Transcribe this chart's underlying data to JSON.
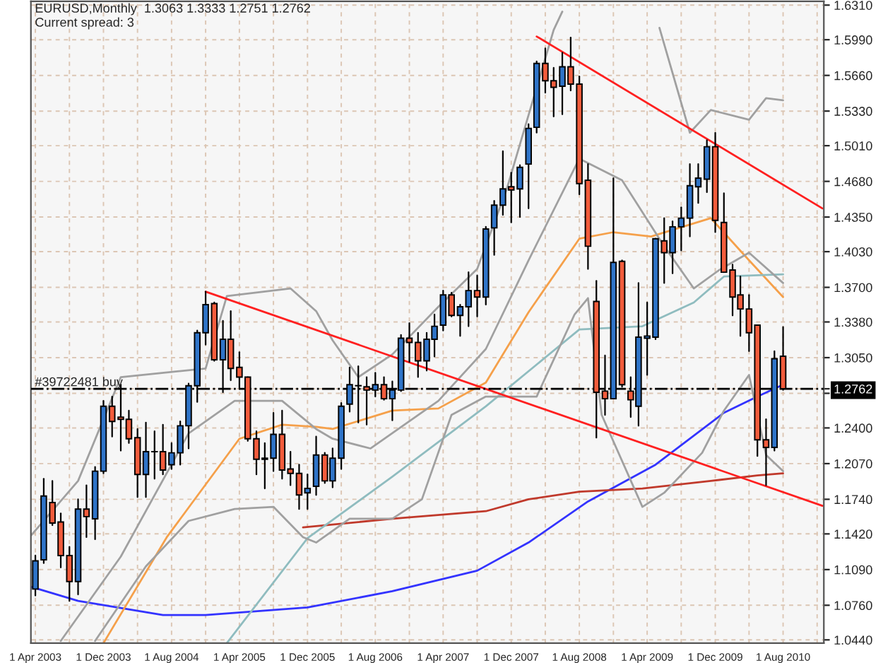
{
  "chart_data": {
    "type": "candlestick",
    "title": "EURUSD,Monthly  1.3063 1.3333 1.2751 1.2762",
    "subtitle": "Current spread: 3",
    "x": [
      "2003-04",
      "2003-05",
      "2003-06",
      "2003-07",
      "2003-08",
      "2003-09",
      "2003-10",
      "2003-11",
      "2003-12",
      "2004-01",
      "2004-02",
      "2004-03",
      "2004-04",
      "2004-05",
      "2004-06",
      "2004-07",
      "2004-08",
      "2004-09",
      "2004-10",
      "2004-11",
      "2004-12",
      "2005-01",
      "2005-02",
      "2005-03",
      "2005-04",
      "2005-05",
      "2005-06",
      "2005-07",
      "2005-08",
      "2005-09",
      "2005-10",
      "2005-11",
      "2005-12",
      "2006-01",
      "2006-02",
      "2006-03",
      "2006-04",
      "2006-05",
      "2006-06",
      "2006-07",
      "2006-08",
      "2006-09",
      "2006-10",
      "2006-11",
      "2006-12",
      "2007-01",
      "2007-02",
      "2007-03",
      "2007-04",
      "2007-05",
      "2007-06",
      "2007-07",
      "2007-08",
      "2007-09",
      "2007-10",
      "2007-11",
      "2007-12",
      "2008-01",
      "2008-02",
      "2008-03",
      "2008-04",
      "2008-05",
      "2008-06",
      "2008-07",
      "2008-08",
      "2008-09",
      "2008-10",
      "2008-11",
      "2008-12",
      "2009-01",
      "2009-02",
      "2009-03",
      "2009-04",
      "2009-05",
      "2009-06",
      "2009-07",
      "2009-08",
      "2009-09",
      "2009-10",
      "2009-11",
      "2009-12",
      "2010-01",
      "2010-02",
      "2010-03",
      "2010-04",
      "2010-05",
      "2010-06",
      "2010-07",
      "2010-08"
    ],
    "ohlc": [
      [
        1.091,
        1.122,
        1.085,
        1.117
      ],
      [
        1.118,
        1.193,
        1.115,
        1.177
      ],
      [
        1.171,
        1.191,
        1.15,
        1.152
      ],
      [
        1.153,
        1.161,
        1.111,
        1.122
      ],
      [
        1.122,
        1.13,
        1.08,
        1.098
      ],
      [
        1.098,
        1.174,
        1.086,
        1.165
      ],
      [
        1.165,
        1.187,
        1.139,
        1.158
      ],
      [
        1.156,
        1.204,
        1.137,
        1.2
      ],
      [
        1.2,
        1.265,
        1.198,
        1.26
      ],
      [
        1.26,
        1.269,
        1.232,
        1.246
      ],
      [
        1.25,
        1.28,
        1.219,
        1.248
      ],
      [
        1.248,
        1.256,
        1.226,
        1.23
      ],
      [
        1.231,
        1.239,
        1.176,
        1.197
      ],
      [
        1.197,
        1.245,
        1.176,
        1.218
      ],
      [
        1.218,
        1.237,
        1.193,
        1.218
      ],
      [
        1.218,
        1.243,
        1.197,
        1.201
      ],
      [
        1.206,
        1.226,
        1.202,
        1.217
      ],
      [
        1.217,
        1.246,
        1.206,
        1.242
      ],
      [
        1.242,
        1.281,
        1.221,
        1.279
      ],
      [
        1.279,
        1.33,
        1.264,
        1.328
      ],
      [
        1.328,
        1.366,
        1.317,
        1.354
      ],
      [
        1.355,
        1.356,
        1.302,
        1.303
      ],
      [
        1.303,
        1.339,
        1.273,
        1.322
      ],
      [
        1.322,
        1.348,
        1.284,
        1.295
      ],
      [
        1.296,
        1.31,
        1.276,
        1.287
      ],
      [
        1.287,
        1.287,
        1.228,
        1.23
      ],
      [
        1.23,
        1.237,
        1.197,
        1.211
      ],
      [
        1.211,
        1.226,
        1.184,
        1.212
      ],
      [
        1.212,
        1.254,
        1.2,
        1.234
      ],
      [
        1.234,
        1.256,
        1.193,
        1.201
      ],
      [
        1.202,
        1.218,
        1.187,
        1.198
      ],
      [
        1.198,
        1.206,
        1.165,
        1.178
      ],
      [
        1.18,
        1.197,
        1.165,
        1.184
      ],
      [
        1.186,
        1.232,
        1.178,
        1.215
      ],
      [
        1.215,
        1.217,
        1.189,
        1.191
      ],
      [
        1.191,
        1.221,
        1.185,
        1.212
      ],
      [
        1.212,
        1.263,
        1.202,
        1.26
      ],
      [
        1.262,
        1.296,
        1.255,
        1.28
      ],
      [
        1.279,
        1.297,
        1.245,
        1.279
      ],
      [
        1.278,
        1.287,
        1.243,
        1.275
      ],
      [
        1.275,
        1.291,
        1.269,
        1.28
      ],
      [
        1.28,
        1.287,
        1.266,
        1.267
      ],
      [
        1.267,
        1.283,
        1.247,
        1.275
      ],
      [
        1.275,
        1.326,
        1.274,
        1.323
      ],
      [
        1.323,
        1.337,
        1.301,
        1.319
      ],
      [
        1.319,
        1.328,
        1.287,
        1.302
      ],
      [
        1.302,
        1.328,
        1.293,
        1.322
      ],
      [
        1.322,
        1.345,
        1.306,
        1.334
      ],
      [
        1.335,
        1.367,
        1.33,
        1.363
      ],
      [
        1.363,
        1.365,
        1.343,
        1.344
      ],
      [
        1.344,
        1.354,
        1.325,
        1.352
      ],
      [
        1.352,
        1.384,
        1.334,
        1.367
      ],
      [
        1.367,
        1.381,
        1.343,
        1.361
      ],
      [
        1.361,
        1.426,
        1.354,
        1.424
      ],
      [
        1.425,
        1.45,
        1.4,
        1.446
      ],
      [
        1.446,
        1.496,
        1.437,
        1.461
      ],
      [
        1.463,
        1.476,
        1.43,
        1.46
      ],
      [
        1.461,
        1.483,
        1.435,
        1.481
      ],
      [
        1.484,
        1.521,
        1.443,
        1.517
      ],
      [
        1.518,
        1.579,
        1.513,
        1.577
      ],
      [
        1.577,
        1.591,
        1.55,
        1.561
      ],
      [
        1.561,
        1.573,
        1.528,
        1.555
      ],
      [
        1.556,
        1.587,
        1.53,
        1.574
      ],
      [
        1.574,
        1.601,
        1.552,
        1.558
      ],
      [
        1.558,
        1.565,
        1.456,
        1.466
      ],
      [
        1.469,
        1.484,
        1.387,
        1.408
      ],
      [
        1.357,
        1.376,
        1.231,
        1.273
      ],
      [
        1.274,
        1.307,
        1.252,
        1.267
      ],
      [
        1.267,
        1.471,
        1.267,
        1.393
      ],
      [
        1.394,
        1.395,
        1.278,
        1.28
      ],
      [
        1.274,
        1.287,
        1.25,
        1.266
      ],
      [
        1.26,
        1.374,
        1.242,
        1.324
      ],
      [
        1.323,
        1.356,
        1.289,
        1.325
      ],
      [
        1.324,
        1.415,
        1.322,
        1.415
      ],
      [
        1.413,
        1.434,
        1.374,
        1.402
      ],
      [
        1.402,
        1.431,
        1.383,
        1.426
      ],
      [
        1.426,
        1.444,
        1.404,
        1.434
      ],
      [
        1.434,
        1.484,
        1.417,
        1.464
      ],
      [
        1.463,
        1.484,
        1.448,
        1.471
      ],
      [
        1.47,
        1.506,
        1.458,
        1.5
      ],
      [
        1.5,
        1.513,
        1.421,
        1.432
      ],
      [
        1.43,
        1.457,
        1.384,
        1.384
      ],
      [
        1.386,
        1.391,
        1.344,
        1.361
      ],
      [
        1.363,
        1.38,
        1.325,
        1.35
      ],
      [
        1.35,
        1.363,
        1.311,
        1.328
      ],
      [
        1.335,
        1.335,
        1.214,
        1.229
      ],
      [
        1.229,
        1.248,
        1.187,
        1.222
      ],
      [
        1.222,
        1.311,
        1.219,
        1.304
      ],
      [
        1.3063,
        1.3333,
        1.2751,
        1.2762
      ]
    ],
    "colors": [
      "#2f74c8",
      "#2f74c8",
      "#f25c3c",
      "#f25c3c",
      "#f25c3c",
      "#2f74c8",
      "#f25c3c",
      "#2f74c8",
      "#2f74c8",
      "#f25c3c",
      "#f25c3c",
      "#f25c3c",
      "#f25c3c",
      "#2f74c8",
      "#2f74c8",
      "#f25c3c",
      "#2f74c8",
      "#2f74c8",
      "#2f74c8",
      "#2f74c8",
      "#2f74c8",
      "#f25c3c",
      "#2f74c8",
      "#f25c3c",
      "#f25c3c",
      "#f25c3c",
      "#f25c3c",
      "#2f74c8",
      "#2f74c8",
      "#f25c3c",
      "#f25c3c",
      "#f25c3c",
      "#2f74c8",
      "#2f74c8",
      "#f25c3c",
      "#2f74c8",
      "#2f74c8",
      "#2f74c8",
      "#2f74c8",
      "#f25c3c",
      "#2f74c8",
      "#f25c3c",
      "#2f74c8",
      "#2f74c8",
      "#f25c3c",
      "#f25c3c",
      "#2f74c8",
      "#2f74c8",
      "#2f74c8",
      "#f25c3c",
      "#2f74c8",
      "#2f74c8",
      "#f25c3c",
      "#2f74c8",
      "#2f74c8",
      "#2f74c8",
      "#f25c3c",
      "#2f74c8",
      "#2f74c8",
      "#2f74c8",
      "#f25c3c",
      "#f25c3c",
      "#2f74c8",
      "#f25c3c",
      "#f25c3c",
      "#f25c3c",
      "#f25c3c",
      "#f25c3c",
      "#2f74c8",
      "#f25c3c",
      "#f25c3c",
      "#2f74c8",
      "#2f74c8",
      "#2f74c8",
      "#f25c3c",
      "#2f74c8",
      "#2f74c8",
      "#2f74c8",
      "#2f74c8",
      "#2f74c8",
      "#f25c3c",
      "#f25c3c",
      "#f25c3c",
      "#f25c3c",
      "#f25c3c",
      "#f25c3c",
      "#f25c3c",
      "#2f74c8",
      "#f25c3c"
    ],
    "series": [
      {
        "type": "line",
        "color": "#3333ff",
        "x": [
          "2003-03-18",
          "2003-09",
          "2004-07",
          "2004-12",
          "2005-12",
          "2006-10",
          "2007-08",
          "2008-02",
          "2008-09",
          "2009-05",
          "2010-01",
          "2010-05",
          "2010-08"
        ],
        "values": [
          1.093,
          1.08,
          1.067,
          1.067,
          1.074,
          1.089,
          1.108,
          1.134,
          1.172,
          1.206,
          1.254,
          1.269,
          1.28
        ]
      },
      {
        "type": "line",
        "color": "#c0392b",
        "x": [
          "2005-11-15",
          "2006-10",
          "2007-09",
          "2008-02",
          "2008-08",
          "2009-03-15",
          "2009-11-15",
          "2010-05",
          "2010-08"
        ],
        "values": [
          1.148,
          1.156,
          1.163,
          1.174,
          1.181,
          1.184,
          1.191,
          1.196,
          1.198
        ]
      },
      {
        "type": "line",
        "color": "#f5a04a",
        "x": [
          "2003-12",
          "2004-07-15",
          "2005-04",
          "2005-09",
          "2006-01",
          "2006-03",
          "2006-10",
          "2007-03-15",
          "2007-09",
          "2008-02",
          "2008-08",
          "2008-12",
          "2009-04-15",
          "2009-11-15",
          "2010-04",
          "2010-08"
        ],
        "values": [
          1.041,
          1.139,
          1.23,
          1.243,
          1.241,
          1.239,
          1.256,
          1.258,
          1.282,
          1.347,
          1.415,
          1.421,
          1.417,
          1.434,
          1.395,
          1.361
        ]
      },
      {
        "type": "line",
        "color": "#8fbcbf",
        "x": [
          "2005-02-15",
          "2005-12",
          "2006-10",
          "2007-09",
          "2008-08",
          "2009-03-15",
          "2009-09-15",
          "2010-01",
          "2010-08"
        ],
        "values": [
          1.041,
          1.138,
          1.195,
          1.26,
          1.331,
          1.334,
          1.356,
          1.38,
          1.382
        ]
      },
      {
        "type": "line",
        "color": "#a0a0a0",
        "x": [
          "2003-03-18",
          "2003-09",
          "2004-02",
          "2004-12",
          "2005-02-15",
          "2005-10",
          "2006-01",
          "2006-03",
          "2006-06",
          "2006-10",
          "2007-03-15",
          "2007-08",
          "2007-11-15",
          "2008-05",
          "2008-06",
          "2008-11",
          "2009-05-15",
          "2009-09",
          "2009-11-15",
          "2010-04",
          "2010-06",
          "2010-08"
        ],
        "values": [
          1.141,
          1.191,
          1.287,
          1.295,
          1.362,
          1.369,
          1.348,
          1.321,
          1.287,
          1.308,
          1.352,
          1.387,
          1.461,
          1.608,
          1.625,
          null,
          1.61,
          1.513,
          1.534,
          1.525,
          1.545,
          1.543
        ]
      },
      {
        "type": "line",
        "color": "#a0a0a0",
        "x": [
          "2003-07",
          "2004-02",
          "2004-10",
          "2005-03-15",
          "2005-09",
          "2006-01",
          "2006-03",
          "2006-07-15",
          "2007-03-15",
          "2007-09",
          "2008-02",
          "2008-08",
          "2009-01",
          "2009-06",
          "2009-09-15",
          "2009-12-15",
          "2010-04",
          "2010-08"
        ],
        "values": [
          1.043,
          1.121,
          1.235,
          1.265,
          1.265,
          1.239,
          1.23,
          1.221,
          1.265,
          1.313,
          1.395,
          1.489,
          1.469,
          1.408,
          1.369,
          1.386,
          1.402,
          1.374
        ]
      },
      {
        "type": "line",
        "color": "#a0a0a0",
        "x": [
          "2003-11",
          "2004-05",
          "2004-10",
          "2005-03-15",
          "2005-08",
          "2005-11-15",
          "2006-01",
          "2006-05",
          "2006-10",
          "2007-01-15",
          "2007-05",
          "2007-09",
          "2008-03",
          "2008-07-15",
          "2008-09",
          "2008-10-20",
          "2009-03-15",
          "2009-06",
          "2009-10-15",
          "2010-01",
          "2010-04",
          "2010-06",
          "2010-08"
        ],
        "values": [
          1.043,
          1.112,
          1.154,
          1.165,
          1.167,
          1.139,
          1.134,
          1.156,
          1.156,
          1.174,
          1.252,
          1.269,
          1.269,
          1.345,
          1.36,
          1.252,
          1.167,
          1.18,
          1.217,
          1.256,
          1.289,
          1.215,
          1.2
        ]
      },
      {
        "type": "line",
        "color": "#ff2020",
        "x": [
          "2004-12",
          "2010-12-20"
        ],
        "values": [
          1.366,
          1.168
        ]
      },
      {
        "type": "line",
        "color": "#ff2020",
        "x": [
          "2008-03",
          "2010-12-20"
        ],
        "values": [
          1.602,
          1.443
        ]
      }
    ],
    "ref_lines": [
      {
        "axis": "y",
        "value": 1.2762,
        "label": "#39722481 buy",
        "color": "#000000",
        "line_style": "dashdot"
      }
    ],
    "xlim": [
      "2003-03-16",
      "2010-12-25"
    ],
    "xticks": [
      {
        "value": "2003-04-01",
        "label": "1 Apr 2003"
      },
      {
        "value": "2003-08-01",
        "label": null
      },
      {
        "value": "2003-12-01",
        "label": "1 Dec 2003"
      },
      {
        "value": "2004-04-01",
        "label": null
      },
      {
        "value": "2004-08-01",
        "label": "1 Aug 2004"
      },
      {
        "value": "2004-12-01",
        "label": null
      },
      {
        "value": "2005-04-01",
        "label": "1 Apr 2005"
      },
      {
        "value": "2005-08-01",
        "label": null
      },
      {
        "value": "2005-12-01",
        "label": "1 Dec 2005"
      },
      {
        "value": "2006-04-01",
        "label": null
      },
      {
        "value": "2006-08-01",
        "label": "1 Aug 2006"
      },
      {
        "value": "2006-12-01",
        "label": null
      },
      {
        "value": "2007-04-01",
        "label": "1 Apr 2007"
      },
      {
        "value": "2007-08-01",
        "label": null
      },
      {
        "value": "2007-12-01",
        "label": "1 Dec 2007"
      },
      {
        "value": "2008-04-01",
        "label": null
      },
      {
        "value": "2008-08-01",
        "label": "1 Aug 2008"
      },
      {
        "value": "2008-12-01",
        "label": null
      },
      {
        "value": "2009-04-01",
        "label": "1 Apr 2009"
      },
      {
        "value": "2009-08-01",
        "label": null
      },
      {
        "value": "2009-12-01",
        "label": "1 Dec 2009"
      },
      {
        "value": "2010-04-01",
        "label": null
      },
      {
        "value": "2010-08-01",
        "label": "1 Aug 2010"
      },
      {
        "value": "2010-12-01",
        "label": null
      }
    ],
    "ylim": [
      1.041,
      1.6345
    ],
    "yticks": [
      {
        "value": 1.631,
        "label": "1.6310"
      },
      {
        "value": 1.599,
        "label": "1.5990"
      },
      {
        "value": 1.566,
        "label": "1.5660"
      },
      {
        "value": 1.533,
        "label": "1.5330"
      },
      {
        "value": 1.501,
        "label": "1.5010"
      },
      {
        "value": 1.468,
        "label": "1.4680"
      },
      {
        "value": 1.435,
        "label": "1.4350"
      },
      {
        "value": 1.403,
        "label": "1.4030"
      },
      {
        "value": 1.37,
        "label": "1.3700"
      },
      {
        "value": 1.338,
        "label": "1.3380"
      },
      {
        "value": 1.305,
        "label": "1.3050"
      },
      {
        "value": 1.2762,
        "label": "1.2762"
      },
      {
        "value": 1.272,
        "label": null
      },
      {
        "value": 1.24,
        "label": "1.2400"
      },
      {
        "value": 1.207,
        "label": "1.2070"
      },
      {
        "value": 1.174,
        "label": "1.1740"
      },
      {
        "value": 1.142,
        "label": "1.1420"
      },
      {
        "value": 1.109,
        "label": "1.1090"
      },
      {
        "value": 1.076,
        "label": "1.0760"
      },
      {
        "value": 1.044,
        "label": "1.0440"
      }
    ],
    "grid": true,
    "legend": false
  }
}
